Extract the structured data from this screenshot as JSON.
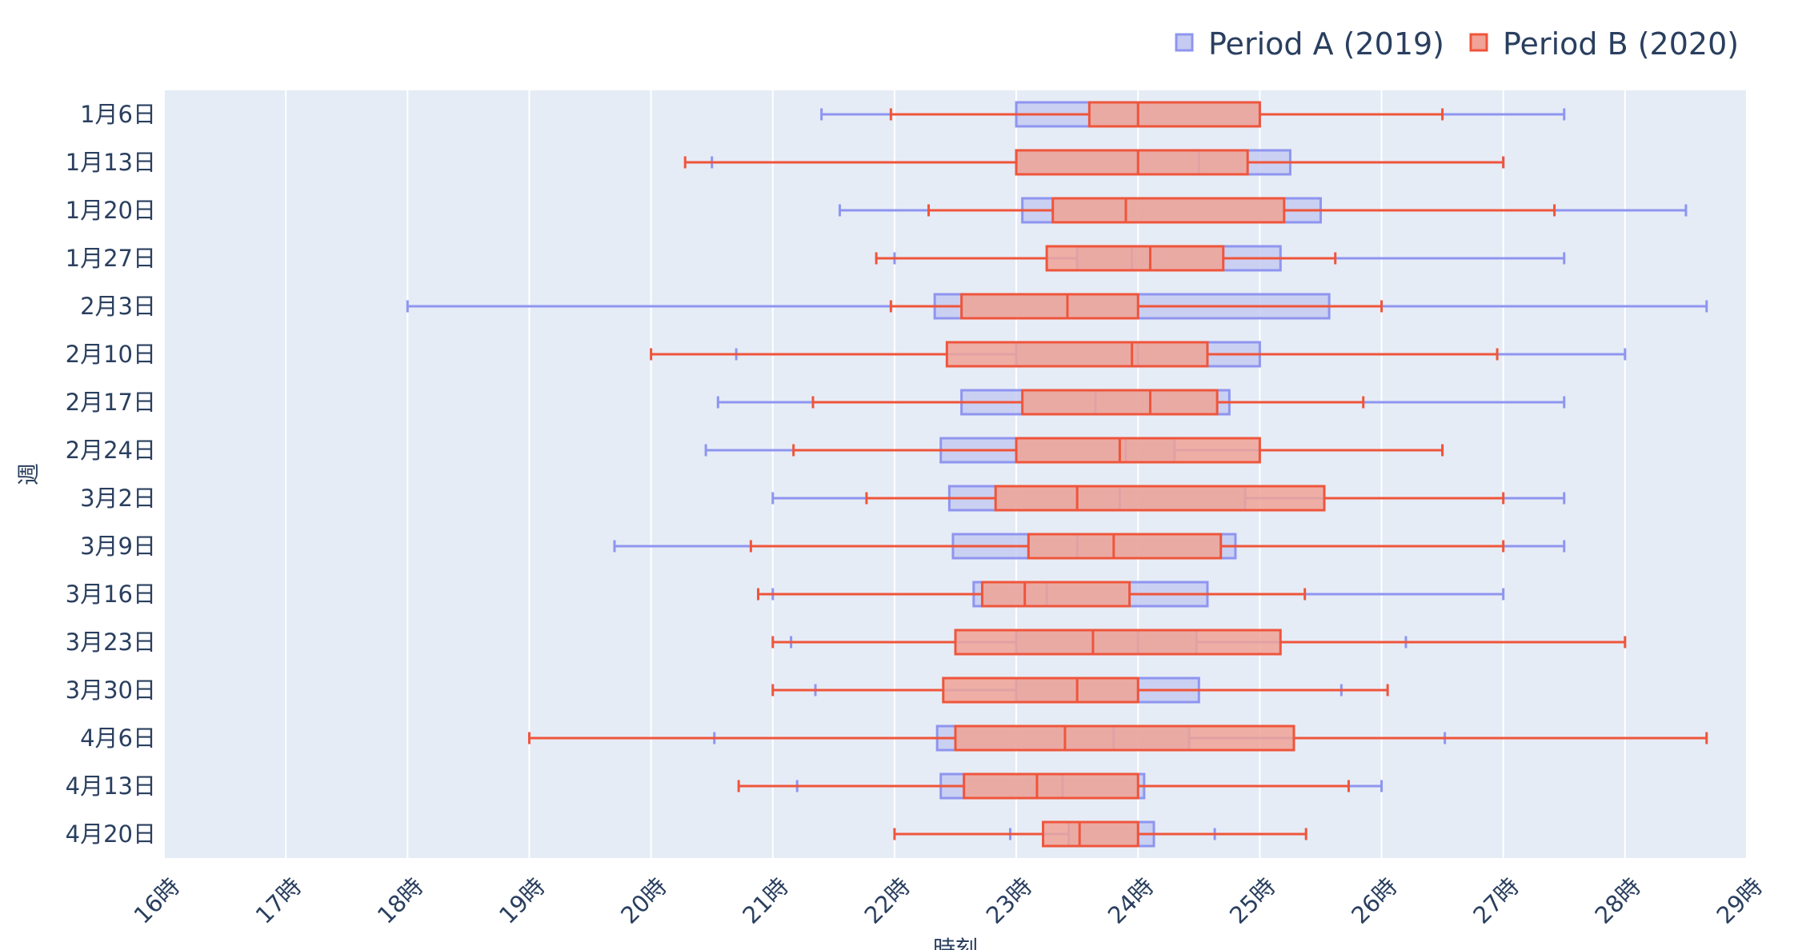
{
  "chart_data": {
    "type": "box",
    "orientation": "horizontal",
    "xlabel": "時刻",
    "ylabel": "週",
    "xlim": [
      16,
      29
    ],
    "x_ticks": [
      {
        "value": 16,
        "label": "16時"
      },
      {
        "value": 17,
        "label": "17時"
      },
      {
        "value": 18,
        "label": "18時"
      },
      {
        "value": 19,
        "label": "19時"
      },
      {
        "value": 20,
        "label": "20時"
      },
      {
        "value": 21,
        "label": "21時"
      },
      {
        "value": 22,
        "label": "22時"
      },
      {
        "value": 23,
        "label": "23時"
      },
      {
        "value": 24,
        "label": "24時"
      },
      {
        "value": 25,
        "label": "25時"
      },
      {
        "value": 26,
        "label": "26時"
      },
      {
        "value": 27,
        "label": "27時"
      },
      {
        "value": 28,
        "label": "28時"
      },
      {
        "value": 29,
        "label": "29時"
      }
    ],
    "categories": [
      "1月6日",
      "1月13日",
      "1月20日",
      "1月27日",
      "2月3日",
      "2月10日",
      "2月17日",
      "2月24日",
      "3月2日",
      "3月9日",
      "3月16日",
      "3月23日",
      "3月30日",
      "4月6日",
      "4月13日",
      "4月20日"
    ],
    "legend_position": "top-right",
    "grid": true,
    "series": [
      {
        "name": "Period A (2019)",
        "line_color": "#8f95ef",
        "fill_color": "#c6cbf1",
        "boxes": [
          {
            "min": 21.4,
            "q1": 23.0,
            "median": 24.0,
            "q3": 25.0,
            "max": 27.5
          },
          {
            "min": 20.5,
            "q1": 23.0,
            "median": 24.5,
            "q3": 25.25,
            "max": 27.0
          },
          {
            "min": 21.55,
            "q1": 23.05,
            "median": 23.9,
            "q3": 25.5,
            "max": 28.5
          },
          {
            "min": 22.0,
            "q1": 23.5,
            "median": 23.95,
            "q3": 25.17,
            "max": 27.5
          },
          {
            "min": 18.0,
            "q1": 22.33,
            "median": 24.0,
            "q3": 25.57,
            "max": 28.67
          },
          {
            "min": 20.7,
            "q1": 23.0,
            "median": 24.0,
            "q3": 25.0,
            "max": 28.0
          },
          {
            "min": 20.55,
            "q1": 22.55,
            "median": 23.65,
            "q3": 24.75,
            "max": 27.5
          },
          {
            "min": 20.45,
            "q1": 22.38,
            "median": 23.9,
            "q3": 24.3,
            "max": 26.5
          },
          {
            "min": 21.0,
            "q1": 22.45,
            "median": 23.85,
            "q3": 24.88,
            "max": 27.5
          },
          {
            "min": 19.7,
            "q1": 22.48,
            "median": 23.5,
            "q3": 24.8,
            "max": 27.5
          },
          {
            "min": 21.0,
            "q1": 22.65,
            "median": 23.25,
            "q3": 24.57,
            "max": 27.0
          },
          {
            "min": 21.15,
            "q1": 23.0,
            "median": 24.0,
            "q3": 24.48,
            "max": 26.2
          },
          {
            "min": 21.35,
            "q1": 23.0,
            "median": 24.0,
            "q3": 24.5,
            "max": 25.67
          },
          {
            "min": 20.52,
            "q1": 22.35,
            "median": 23.8,
            "q3": 24.42,
            "max": 26.52
          },
          {
            "min": 21.2,
            "q1": 22.38,
            "median": 23.38,
            "q3": 24.05,
            "max": 26.0
          },
          {
            "min": 22.95,
            "q1": 23.43,
            "median": 24.0,
            "q3": 24.13,
            "max": 24.63
          }
        ]
      },
      {
        "name": "Period B (2020)",
        "line_color": "#ef553b",
        "fill_color": "#f0a396",
        "boxes": [
          {
            "min": 21.97,
            "q1": 23.6,
            "median": 24.0,
            "q3": 25.0,
            "max": 26.5
          },
          {
            "min": 20.28,
            "q1": 23.0,
            "median": 24.0,
            "q3": 24.9,
            "max": 27.0
          },
          {
            "min": 22.28,
            "q1": 23.3,
            "median": 23.9,
            "q3": 25.2,
            "max": 27.42
          },
          {
            "min": 21.85,
            "q1": 23.25,
            "median": 24.1,
            "q3": 24.7,
            "max": 25.62
          },
          {
            "min": 21.97,
            "q1": 22.55,
            "median": 23.42,
            "q3": 24.0,
            "max": 26.0
          },
          {
            "min": 20.0,
            "q1": 22.43,
            "median": 23.95,
            "q3": 24.57,
            "max": 26.95
          },
          {
            "min": 21.33,
            "q1": 23.05,
            "median": 24.1,
            "q3": 24.65,
            "max": 25.85
          },
          {
            "min": 21.17,
            "q1": 23.0,
            "median": 23.85,
            "q3": 25.0,
            "max": 26.5
          },
          {
            "min": 21.77,
            "q1": 22.83,
            "median": 23.5,
            "q3": 25.53,
            "max": 27.0
          },
          {
            "min": 20.82,
            "q1": 23.1,
            "median": 23.8,
            "q3": 24.68,
            "max": 27.0
          },
          {
            "min": 20.88,
            "q1": 22.72,
            "median": 23.07,
            "q3": 23.93,
            "max": 25.37
          },
          {
            "min": 21.0,
            "q1": 22.5,
            "median": 23.63,
            "q3": 25.17,
            "max": 28.0
          },
          {
            "min": 21.0,
            "q1": 22.4,
            "median": 23.5,
            "q3": 24.0,
            "max": 26.05
          },
          {
            "min": 19.0,
            "q1": 22.5,
            "median": 23.4,
            "q3": 25.28,
            "max": 28.67
          },
          {
            "min": 20.72,
            "q1": 22.57,
            "median": 23.17,
            "q3": 24.0,
            "max": 25.73
          },
          {
            "min": 22.0,
            "q1": 23.22,
            "median": 23.52,
            "q3": 24.0,
            "max": 25.38
          }
        ]
      }
    ]
  }
}
